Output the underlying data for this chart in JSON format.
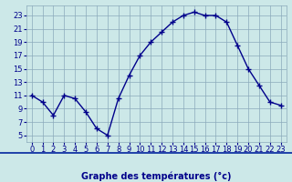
{
  "hours": [
    0,
    1,
    2,
    3,
    4,
    5,
    6,
    7,
    8,
    9,
    10,
    11,
    12,
    13,
    14,
    15,
    16,
    17,
    18,
    19,
    20,
    21,
    22,
    23
  ],
  "temps": [
    11,
    10,
    8,
    11,
    10.5,
    8.5,
    6,
    5,
    10.5,
    14,
    17,
    19,
    20.5,
    22,
    23,
    23.5,
    23,
    23,
    22,
    18.5,
    15,
    12.5,
    10,
    9.5
  ],
  "line_color": "#00008b",
  "marker": "+",
  "marker_size": 4.0,
  "bg_color": "#cce8e8",
  "grid_color": "#8aaabb",
  "xlabel": "Graphe des températures (°c)",
  "xlabel_color": "#00008b",
  "xlabel_fontsize": 7,
  "tick_color": "#00008b",
  "tick_fontsize": 6,
  "ylim": [
    4,
    24.5
  ],
  "yticks": [
    5,
    7,
    9,
    11,
    13,
    15,
    17,
    19,
    21,
    23
  ],
  "xlim": [
    -0.5,
    23.5
  ],
  "xticks": [
    0,
    1,
    2,
    3,
    4,
    5,
    6,
    7,
    8,
    9,
    10,
    11,
    12,
    13,
    14,
    15,
    16,
    17,
    18,
    19,
    20,
    21,
    22,
    23
  ],
  "bottom_bar_color": "#2244aa",
  "bottom_bar_height": 0.03
}
